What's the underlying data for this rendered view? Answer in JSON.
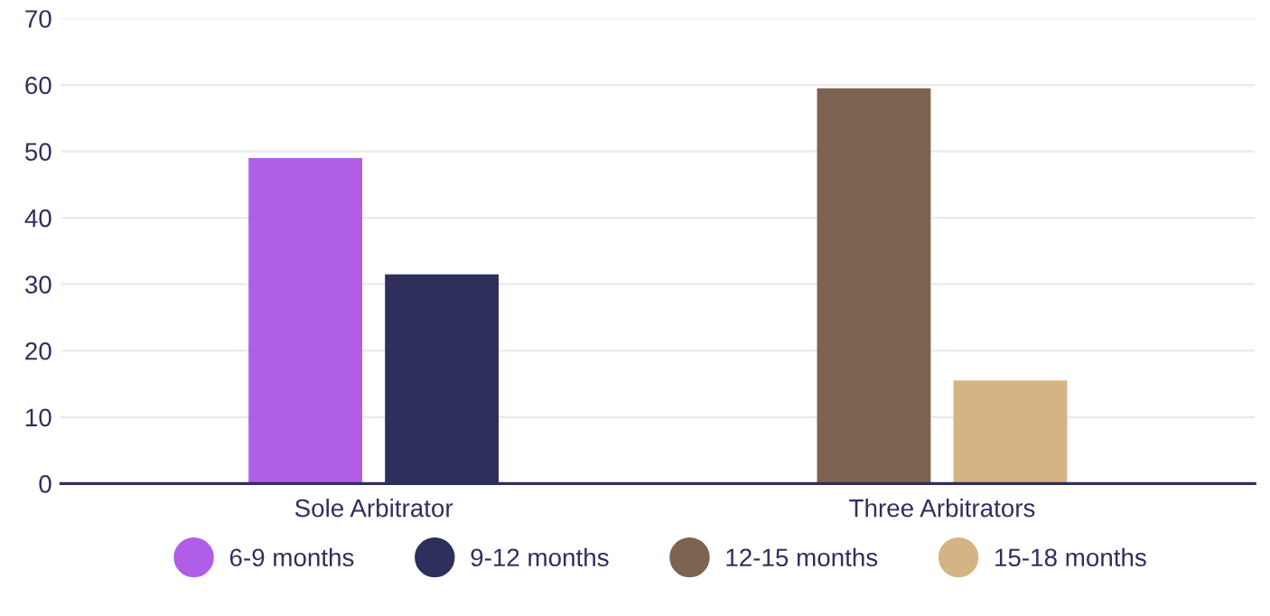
{
  "chart_data": {
    "type": "bar",
    "categories": [
      "Sole Arbitrator",
      "Three Arbitrators"
    ],
    "series": [
      {
        "name": "6-9 months",
        "color": "#b05ee8",
        "values": [
          49,
          null
        ]
      },
      {
        "name": "9-12 months",
        "color": "#2e2f5c",
        "values": [
          31.5,
          null
        ]
      },
      {
        "name": "12-15 months",
        "color": "#7d6450",
        "values": [
          null,
          59.5
        ]
      },
      {
        "name": "15-18 months",
        "color": "#d4b483",
        "values": [
          null,
          15.5
        ]
      }
    ],
    "ylim": [
      0,
      70
    ],
    "yticks": [
      0,
      10,
      20,
      30,
      40,
      50,
      60,
      70
    ],
    "grid": "y",
    "legend": "bottom"
  }
}
